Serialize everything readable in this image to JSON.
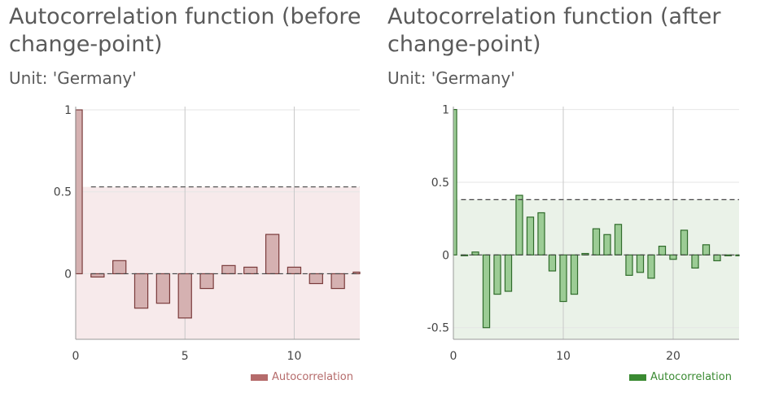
{
  "panels": [
    {
      "title": "Autocorrelation function (before change-point)",
      "subtitle": "Unit: 'Germany'",
      "legend_label": "Autocorrelation",
      "colors": {
        "bar": "#d5b1b1",
        "bar_stroke": "#7a3b3b",
        "band": "#f7eaeb",
        "legend": "#b56b6b",
        "legend_text": "#b56b6b"
      }
    },
    {
      "title": "Autocorrelation function (after change-point)",
      "subtitle": "Unit: 'Germany'",
      "legend_label": "Autocorrelation",
      "colors": {
        "bar": "#9ccc95",
        "bar_stroke": "#2f6b2a",
        "band": "#eaf2e8",
        "legend": "#3a8a32",
        "legend_text": "#3a8a32"
      }
    }
  ],
  "chart_data": [
    {
      "type": "bar",
      "title": "Autocorrelation function (before change-point)",
      "subtitle": "Unit: 'Germany'",
      "x": [
        0,
        1,
        2,
        3,
        4,
        5,
        6,
        7,
        8,
        9,
        10,
        11,
        12,
        13
      ],
      "series": [
        {
          "name": "Autocorrelation",
          "values": [
            1.0,
            -0.02,
            0.08,
            -0.21,
            -0.18,
            -0.27,
            -0.09,
            0.05,
            0.04,
            0.24,
            0.04,
            -0.06,
            -0.09,
            0.01
          ]
        }
      ],
      "confidence_bound": 0.53,
      "xlim": [
        0,
        13
      ],
      "ylim": [
        -0.4,
        1.02
      ],
      "xticks": [
        0,
        5,
        10
      ],
      "yticks": [
        1,
        0.5,
        0
      ],
      "vertical_grid": true,
      "legend": "bottom-right"
    },
    {
      "type": "bar",
      "title": "Autocorrelation function (after change-point)",
      "subtitle": "Unit: 'Germany'",
      "x": [
        0,
        1,
        2,
        3,
        4,
        5,
        6,
        7,
        8,
        9,
        10,
        11,
        12,
        13,
        14,
        15,
        16,
        17,
        18,
        19,
        20,
        21,
        22,
        23,
        24,
        25,
        26
      ],
      "series": [
        {
          "name": "Autocorrelation",
          "values": [
            1.0,
            0.0,
            0.02,
            -0.5,
            -0.27,
            -0.25,
            0.41,
            0.26,
            0.29,
            -0.11,
            -0.32,
            -0.27,
            0.01,
            0.18,
            0.14,
            0.21,
            -0.14,
            -0.12,
            -0.16,
            0.06,
            -0.03,
            0.17,
            -0.09,
            0.07,
            -0.04,
            0.0,
            0.0
          ]
        }
      ],
      "confidence_bound": 0.38,
      "xlim": [
        0,
        26
      ],
      "ylim": [
        -0.58,
        1.02
      ],
      "xticks": [
        0,
        10,
        20
      ],
      "yticks": [
        1,
        0.5,
        0,
        -0.5
      ],
      "vertical_grid": true,
      "legend": "bottom-right"
    }
  ]
}
